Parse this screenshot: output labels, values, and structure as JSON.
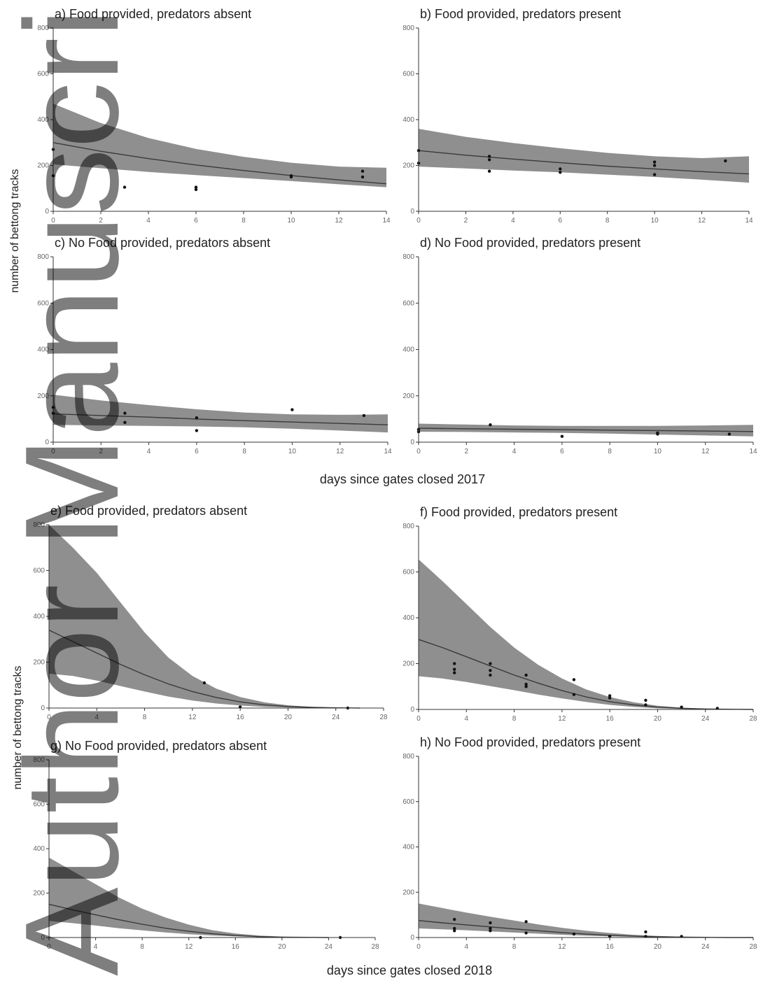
{
  "watermark": "Author Manuscript",
  "xlabel_2017": "days since gates closed 2017",
  "xlabel_2018": "days since gates closed 2018",
  "ylabel": "number of bettong tracks",
  "colors": {
    "band": "#8f8f8f",
    "line": "#3a3a3a",
    "point": "#111111",
    "axis": "#333333"
  },
  "chart_data": [
    {
      "type": "line",
      "title": "a) Food provided, predators absent",
      "xlim": [
        0,
        14
      ],
      "ylim": [
        0,
        800
      ],
      "xticks": [
        0,
        2,
        4,
        6,
        8,
        10,
        12,
        14
      ],
      "yticks": [
        0,
        200,
        400,
        600,
        800
      ],
      "x": [
        0,
        2,
        4,
        6,
        8,
        10,
        12,
        14
      ],
      "fit": [
        300,
        262,
        230,
        202,
        178,
        156,
        137,
        120
      ],
      "lower": [
        205,
        188,
        172,
        158,
        145,
        132,
        118,
        105
      ],
      "upper": [
        470,
        385,
        320,
        272,
        238,
        212,
        195,
        190
      ],
      "points": [
        [
          0,
          270
        ],
        [
          0,
          155
        ],
        [
          3,
          105
        ],
        [
          6,
          105
        ],
        [
          6,
          95
        ],
        [
          10,
          155
        ],
        [
          10,
          150
        ],
        [
          13,
          175
        ],
        [
          13,
          150
        ]
      ]
    },
    {
      "type": "line",
      "title": "b) Food provided, predators present",
      "xlim": [
        0,
        14
      ],
      "ylim": [
        0,
        800
      ],
      "xticks": [
        0,
        2,
        4,
        6,
        8,
        10,
        12,
        14
      ],
      "yticks": [
        0,
        200,
        400,
        600,
        800
      ],
      "x": [
        0,
        2,
        4,
        6,
        8,
        10,
        12,
        14
      ],
      "fit": [
        265,
        245,
        228,
        212,
        197,
        185,
        173,
        163
      ],
      "lower": [
        195,
        187,
        178,
        170,
        160,
        150,
        138,
        125
      ],
      "upper": [
        360,
        325,
        298,
        275,
        255,
        240,
        232,
        240
      ],
      "points": [
        [
          0,
          265
        ],
        [
          0,
          210
        ],
        [
          3,
          240
        ],
        [
          3,
          225
        ],
        [
          3,
          175
        ],
        [
          6,
          185
        ],
        [
          6,
          170
        ],
        [
          10,
          215
        ],
        [
          10,
          200
        ],
        [
          10,
          160
        ],
        [
          13,
          220
        ]
      ]
    },
    {
      "type": "line",
      "title": "c) No Food provided, predators absent",
      "xlim": [
        0,
        14
      ],
      "ylim": [
        0,
        800
      ],
      "xticks": [
        0,
        2,
        4,
        6,
        8,
        10,
        12,
        14
      ],
      "yticks": [
        0,
        200,
        400,
        600,
        800
      ],
      "x": [
        0,
        2,
        4,
        6,
        8,
        10,
        12,
        14
      ],
      "fit": [
        122,
        115,
        108,
        100,
        93,
        87,
        81,
        75
      ],
      "lower": [
        75,
        72,
        70,
        68,
        64,
        58,
        50,
        42
      ],
      "upper": [
        205,
        180,
        160,
        142,
        128,
        120,
        118,
        120
      ],
      "points": [
        [
          0,
          150
        ],
        [
          0,
          125
        ],
        [
          3,
          125
        ],
        [
          3,
          85
        ],
        [
          6,
          105
        ],
        [
          6,
          50
        ],
        [
          10,
          140
        ],
        [
          13,
          115
        ]
      ]
    },
    {
      "type": "line",
      "title": "d) No Food provided, predators present",
      "xlim": [
        0,
        14
      ],
      "ylim": [
        0,
        800
      ],
      "xticks": [
        0,
        2,
        4,
        6,
        8,
        10,
        12,
        14
      ],
      "yticks": [
        0,
        200,
        400,
        600,
        800
      ],
      "x": [
        0,
        2,
        4,
        6,
        8,
        10,
        12,
        14
      ],
      "fit": [
        60,
        58,
        56,
        54,
        52,
        50,
        48,
        46
      ],
      "lower": [
        45,
        44,
        42,
        40,
        37,
        33,
        29,
        25
      ],
      "upper": [
        80,
        76,
        72,
        70,
        70,
        70,
        72,
        75
      ],
      "points": [
        [
          0,
          55
        ],
        [
          0,
          45
        ],
        [
          3,
          75
        ],
        [
          6,
          25
        ],
        [
          10,
          40
        ],
        [
          10,
          35
        ],
        [
          13,
          35
        ]
      ]
    },
    {
      "type": "line",
      "title": "e) Food provided, predators absent",
      "xlim": [
        0,
        28
      ],
      "ylim": [
        0,
        800
      ],
      "xticks": [
        0,
        4,
        8,
        12,
        16,
        20,
        24,
        28
      ],
      "yticks": [
        0,
        200,
        400,
        600,
        800
      ],
      "x": [
        0,
        2,
        4,
        6,
        8,
        10,
        12,
        14,
        16,
        18,
        20,
        22,
        24,
        26
      ],
      "fit": [
        340,
        290,
        240,
        190,
        145,
        105,
        72,
        46,
        27,
        14,
        7,
        3,
        1,
        0
      ],
      "lower": [
        150,
        140,
        120,
        96,
        72,
        50,
        33,
        20,
        11,
        5,
        2,
        1,
        0,
        0
      ],
      "upper": [
        800,
        700,
        590,
        460,
        330,
        220,
        140,
        85,
        48,
        25,
        12,
        5,
        2,
        0
      ],
      "points": [
        [
          13,
          110
        ],
        [
          16,
          5
        ],
        [
          25,
          0
        ]
      ]
    },
    {
      "type": "line",
      "title": "f) Food provided, predators present",
      "xlim": [
        0,
        28
      ],
      "ylim": [
        0,
        800
      ],
      "xticks": [
        0,
        4,
        8,
        12,
        16,
        20,
        24,
        28
      ],
      "yticks": [
        0,
        200,
        400,
        600,
        800
      ],
      "x": [
        0,
        2,
        4,
        6,
        8,
        10,
        12,
        14,
        16,
        18,
        20,
        22,
        24,
        26,
        28
      ],
      "fit": [
        305,
        270,
        230,
        190,
        150,
        115,
        82,
        55,
        34,
        20,
        10,
        5,
        2,
        1,
        0
      ],
      "lower": [
        145,
        135,
        120,
        102,
        84,
        65,
        48,
        33,
        20,
        11,
        5,
        2,
        1,
        0,
        0
      ],
      "upper": [
        655,
        560,
        460,
        360,
        270,
        195,
        135,
        88,
        54,
        31,
        16,
        8,
        3,
        1,
        0
      ],
      "points": [
        [
          3,
          200
        ],
        [
          3,
          175
        ],
        [
          3,
          160
        ],
        [
          6,
          200
        ],
        [
          6,
          170
        ],
        [
          6,
          150
        ],
        [
          9,
          150
        ],
        [
          9,
          110
        ],
        [
          9,
          100
        ],
        [
          13,
          130
        ],
        [
          13,
          65
        ],
        [
          16,
          60
        ],
        [
          16,
          50
        ],
        [
          19,
          40
        ],
        [
          19,
          20
        ],
        [
          22,
          10
        ],
        [
          25,
          5
        ]
      ]
    },
    {
      "type": "line",
      "title": "g) No Food provided, predators absent",
      "xlim": [
        0,
        28
      ],
      "ylim": [
        0,
        800
      ],
      "xticks": [
        0,
        4,
        8,
        12,
        16,
        20,
        24,
        28
      ],
      "yticks": [
        0,
        200,
        400,
        600,
        800
      ],
      "x": [
        0,
        2,
        4,
        6,
        8,
        10,
        12,
        14,
        16,
        18,
        20,
        22,
        24
      ],
      "fit": [
        150,
        125,
        102,
        80,
        60,
        42,
        28,
        17,
        9,
        4,
        2,
        1,
        0
      ],
      "lower": [
        75,
        65,
        54,
        42,
        32,
        23,
        15,
        9,
        5,
        2,
        1,
        0,
        0
      ],
      "upper": [
        360,
        300,
        240,
        180,
        130,
        90,
        58,
        33,
        18,
        9,
        4,
        1,
        0
      ],
      "points": [
        [
          13,
          0
        ],
        [
          25,
          0
        ]
      ]
    },
    {
      "type": "line",
      "title": "h) No Food provided, predators present",
      "xlim": [
        0,
        28
      ],
      "ylim": [
        0,
        800
      ],
      "xticks": [
        0,
        4,
        8,
        12,
        16,
        20,
        24,
        28
      ],
      "yticks": [
        0,
        200,
        400,
        600,
        800
      ],
      "x": [
        0,
        2,
        4,
        6,
        8,
        10,
        12,
        14,
        16,
        18,
        20,
        22,
        24,
        26,
        28
      ],
      "fit": [
        75,
        65,
        56,
        47,
        38,
        30,
        22,
        15,
        10,
        6,
        3,
        2,
        1,
        0,
        0
      ],
      "lower": [
        40,
        36,
        32,
        27,
        22,
        17,
        12,
        8,
        5,
        3,
        1,
        1,
        0,
        0,
        0
      ],
      "upper": [
        150,
        130,
        110,
        92,
        75,
        58,
        43,
        30,
        20,
        12,
        7,
        4,
        2,
        1,
        0
      ],
      "points": [
        [
          3,
          80
        ],
        [
          3,
          40
        ],
        [
          3,
          30
        ],
        [
          6,
          65
        ],
        [
          6,
          40
        ],
        [
          6,
          30
        ],
        [
          9,
          70
        ],
        [
          9,
          20
        ],
        [
          13,
          15
        ],
        [
          16,
          5
        ],
        [
          19,
          25
        ],
        [
          19,
          5
        ],
        [
          22,
          5
        ]
      ]
    }
  ]
}
